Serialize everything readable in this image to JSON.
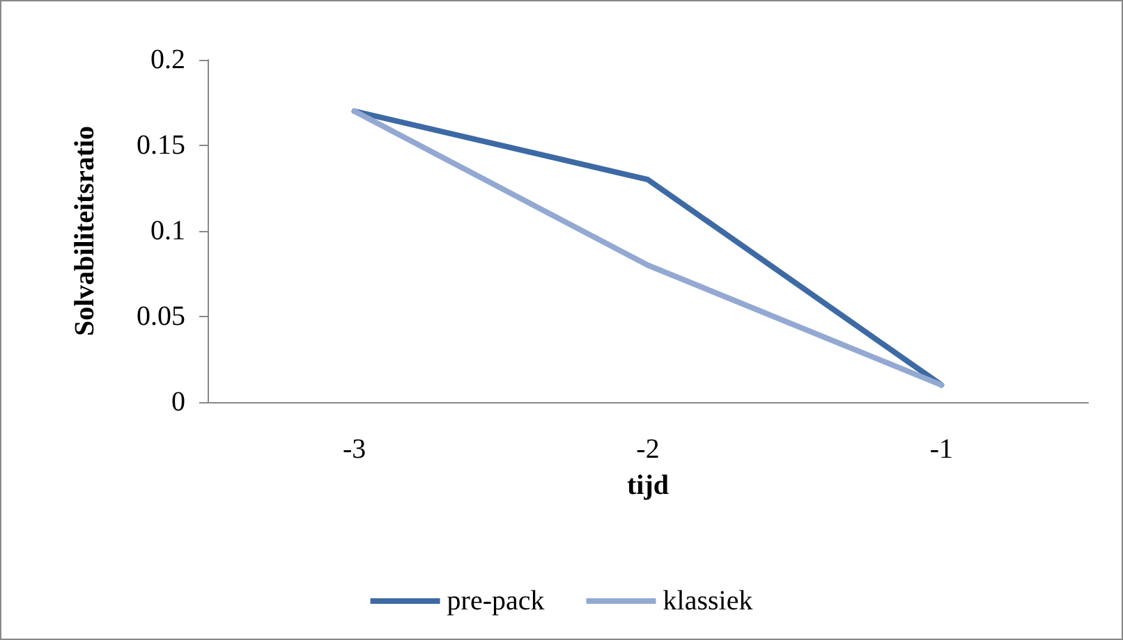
{
  "chart_data": {
    "type": "line",
    "xlabel": "tijd",
    "ylabel": "Solvabiliteitsratio",
    "categories": [
      "-3",
      "-2",
      "-1"
    ],
    "series": [
      {
        "name": "pre-pack",
        "color": "#3d6aa5",
        "values": [
          0.17,
          0.13,
          0.01
        ]
      },
      {
        "name": "klassiek",
        "color": "#93a9d2",
        "values": [
          0.17,
          0.08,
          0.01
        ]
      }
    ],
    "ylim": [
      0,
      0.2
    ],
    "yticks": [
      0,
      0.05,
      0.1,
      0.15,
      0.2
    ],
    "grid": false,
    "legend": "bottom",
    "marker": "none",
    "line_style": "solid"
  }
}
